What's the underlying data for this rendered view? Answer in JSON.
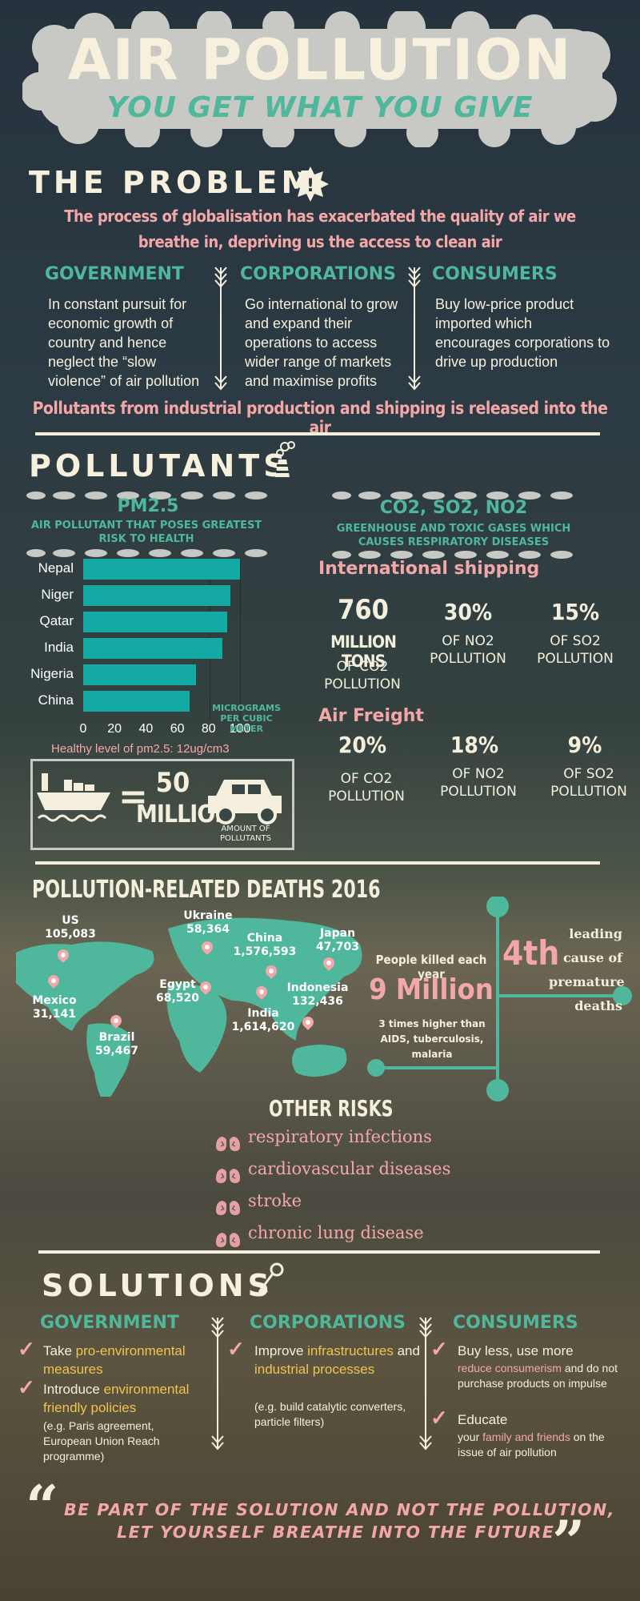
{
  "title": {
    "main": "AIR POLLUTION",
    "sub": "YOU GET WHAT YOU GIVE"
  },
  "problem": {
    "heading": "THE PROBLEM",
    "intro": "The process of globalisation has exacerbated the quality of air we breathe in, depriving us the access to clean air",
    "columns": [
      {
        "heading": "GOVERNMENT",
        "text": "In constant pursuit for economic growth of country and hence neglect the “slow violence” of air pollution"
      },
      {
        "heading": "CORPORATIONS",
        "text": "Go international to grow and expand their operations to access wider range of markets and maximise profits"
      },
      {
        "heading": "CONSUMERS",
        "text": "Buy low-price product imported which encourages corporations to drive up production"
      }
    ],
    "conclusion": "Pollutants from industrial production and shipping is released into the air"
  },
  "pollutants": {
    "heading": "POLLUTANTS",
    "pm25": {
      "title": "PM2.5",
      "subtitle": "AIR POLLUTANT THAT POSES GREATEST RISK TO HEALTH"
    },
    "gases": {
      "title": "CO2, SO2, NO2",
      "subtitle": "GREENHOUSE AND TOXIC GASES WHICH CAUSES RESPIRATORY DISEASES"
    },
    "healthy_note": "Healthy level of pm2.5: 12ug/cm3",
    "ship_equation": {
      "value": "50",
      "unit": "MILLION",
      "caption": "AMOUNT OF POLLUTANTS"
    },
    "shipping": {
      "heading": "International shipping",
      "stats": [
        {
          "value": "760",
          "unit": "MILLION TONS",
          "label": "OF CO2 POLLUTION"
        },
        {
          "value": "30%",
          "label": "OF NO2 POLLUTION"
        },
        {
          "value": "15%",
          "label": "OF SO2 POLLUTION"
        }
      ]
    },
    "freight": {
      "heading": "Air Freight",
      "stats": [
        {
          "value": "20%",
          "label": "OF CO2 POLLUTION"
        },
        {
          "value": "18%",
          "label": "OF NO2 POLLUTION"
        },
        {
          "value": "9%",
          "label": "OF SO2 POLLUTION"
        }
      ]
    }
  },
  "chart_data": {
    "type": "bar",
    "orientation": "horizontal",
    "categories": [
      "Nepal",
      "Niger",
      "Qatar",
      "India",
      "Nigeria",
      "China"
    ],
    "values": [
      100,
      94,
      92,
      89,
      72,
      68
    ],
    "xlim": [
      0,
      100
    ],
    "xticks": [
      "0",
      "20",
      "40",
      "60",
      "80",
      "100"
    ],
    "unit_label": "MICROGRAMS PER CUBIC METER",
    "color": "#13aaa4"
  },
  "deaths": {
    "heading": "POLLUTION-RELATED DEATHS 2016",
    "countries": [
      {
        "name": "US",
        "value": "105,083"
      },
      {
        "name": "Mexico",
        "value": "31,141"
      },
      {
        "name": "Brazil",
        "value": "59,467"
      },
      {
        "name": "Ukraine",
        "value": "58,364"
      },
      {
        "name": "Egypt",
        "value": "68,520"
      },
      {
        "name": "China",
        "value": "1,576,593"
      },
      {
        "name": "India",
        "value": "1,614,620"
      },
      {
        "name": "Japan",
        "value": "47,703"
      },
      {
        "name": "Indonesia",
        "value": "132,436"
      }
    ],
    "killed_label": "People killed each year",
    "killed_value": "9 Million",
    "killed_note": "3 times higher than AIDS, tuberculosis, malaria",
    "rank": "4th",
    "rank_text": "leading cause of premature deaths"
  },
  "risks": {
    "heading": "OTHER RISKS",
    "items": [
      "respiratory infections",
      "cardiovascular diseases",
      "stroke",
      "chronic lung disease"
    ]
  },
  "solutions": {
    "heading": "SOLUTIONS",
    "government": {
      "heading": "GOVERNMENT",
      "i1a": "Take ",
      "i1b": "pro-environmental measures",
      "i2a": "Introduce ",
      "i2b": "environmental friendly policies",
      "note": "(e.g. Paris agreement, European Union Reach programme)"
    },
    "corporations": {
      "heading": "CORPORATIONS",
      "i1a": "Improve ",
      "i1b": "infrastructures",
      "i1c": " and ",
      "i1d": "industrial processes",
      "note": "(e.g. build catalytic converters, particle filters)"
    },
    "consumers": {
      "heading": "CONSUMERS",
      "i1a": "Buy less, use more ",
      "i1b": "reduce consumerism",
      "i1c": " and do not purchase products on impulse",
      "i2a": "Educate",
      "i2b": "your ",
      "i2c": "family and friends",
      "i2d": " on the issue of air pollution"
    }
  },
  "quote": {
    "line1": "BE PART OF THE SOLUTION AND NOT THE POLLUTION,",
    "line2": "LET YOURSELF BREATHE INTO THE FUTURE"
  },
  "colors": {
    "teal": "#4fb79b",
    "pink": "#f4a7a8",
    "cream": "#f4efdc",
    "bar": "#13aaa4",
    "yellow": "#f0c350"
  }
}
